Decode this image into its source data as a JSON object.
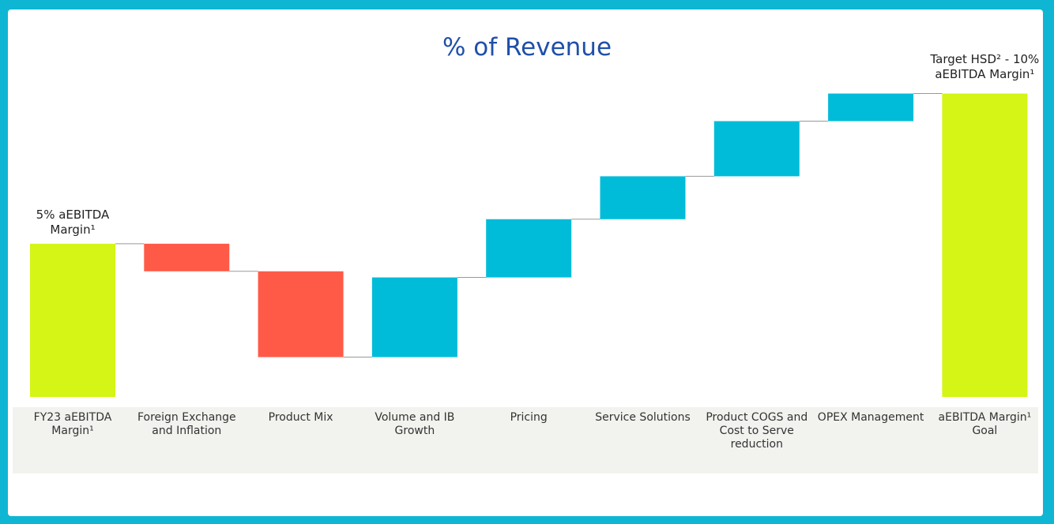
{
  "chart_data": {
    "type": "waterfall",
    "title": "% of Revenue",
    "categories": [
      "FY23 aEBITDA Margin¹",
      "Foreign Exchange and Inflation",
      "Product Mix",
      "Volume and IB Growth",
      "Pricing",
      "Service Solutions",
      "Product COGS and Cost to Serve reduction",
      "OPEX Management",
      "aEBITDA Margin¹ Goal"
    ],
    "values": [
      5,
      -0.9,
      -2.8,
      2.6,
      1.9,
      1.4,
      1.8,
      0.9,
      9.9
    ],
    "annotations": [
      "5% aEBITDA Margin¹",
      "Target HSD² - 10% aEBITDA Margin¹"
    ],
    "colors": {
      "total": "#d4f516",
      "increase": "#00bcd9",
      "decrease": "#ff5a47"
    },
    "ylim": [
      0,
      12
    ]
  }
}
